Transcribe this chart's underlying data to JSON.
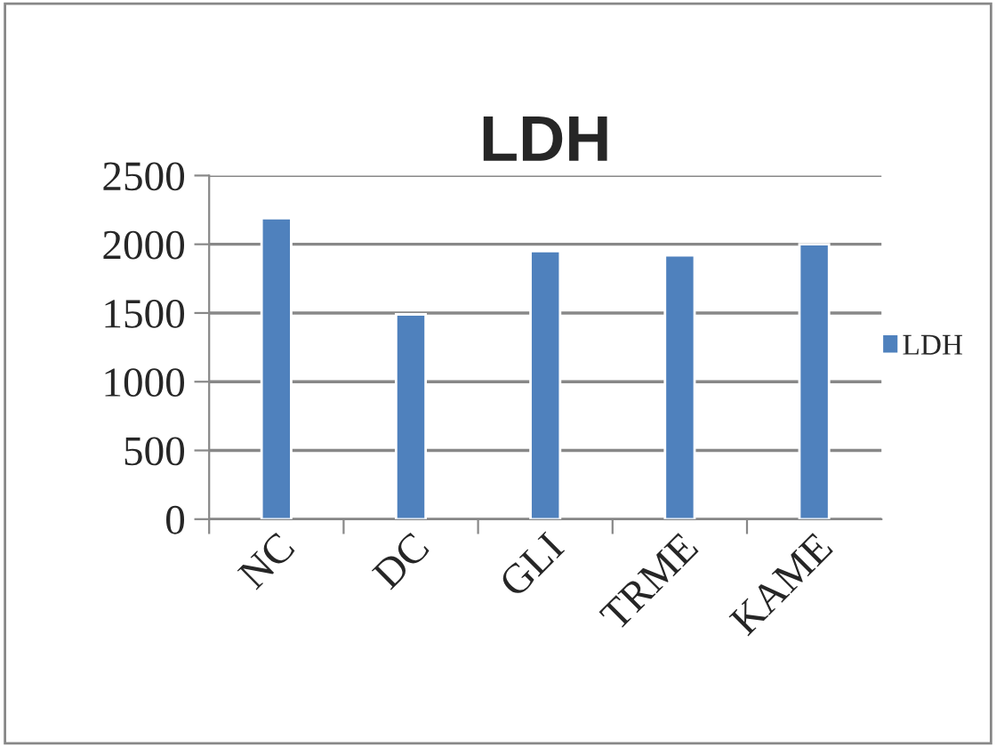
{
  "chart_data": {
    "type": "bar",
    "title": "LDH",
    "categories": [
      "NC",
      "DC",
      "GLI",
      "TRME",
      "KAME"
    ],
    "series": [
      {
        "name": "LDH",
        "color": "#4f81bd",
        "values": [
          2190,
          1490,
          1950,
          1920,
          2000
        ]
      }
    ],
    "ylim": [
      0,
      2500
    ],
    "yticks": [
      0,
      500,
      1000,
      1500,
      2000,
      2500
    ],
    "grid": "y",
    "legend": "right"
  }
}
